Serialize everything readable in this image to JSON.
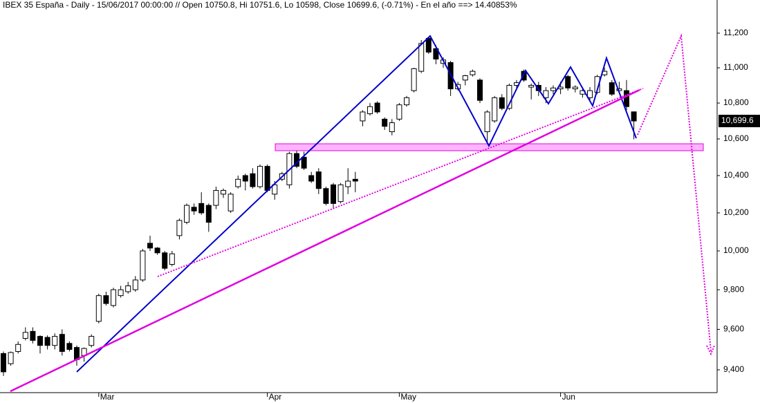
{
  "chart_data": {
    "type": "candlestick",
    "title": "IBEX 35 España - Daily - 15/06/2017 00:00:00 // Open 10750.8, Hi 10751.6, Lo 10598, Close 10699.6, (-0.71%) - En el año ==> 14.40853%",
    "categories": [
      null,
      null,
      null,
      null,
      null,
      null,
      null,
      null,
      null,
      null,
      null,
      null,
      null,
      "Mar",
      null,
      null,
      null,
      null,
      null,
      null,
      null,
      null,
      null,
      null,
      null,
      null,
      null,
      null,
      null,
      null,
      null,
      null,
      null,
      null,
      null,
      null,
      "Apr",
      null,
      null,
      null,
      null,
      null,
      null,
      null,
      null,
      null,
      null,
      null,
      null,
      null,
      null,
      null,
      null,
      null,
      "May",
      null,
      null,
      null,
      null,
      null,
      null,
      null,
      null,
      null,
      null,
      null,
      null,
      null,
      null,
      null,
      null,
      null,
      null,
      null,
      null,
      null,
      "Jun",
      null,
      null,
      null,
      null,
      null,
      null,
      null,
      null,
      null,
      null
    ],
    "open": [
      9480,
      9430,
      9490,
      9555,
      9590,
      9565,
      9560,
      9520,
      9575,
      9530,
      9510,
      9470,
      9520,
      9640,
      9770,
      9720,
      9770,
      9790,
      9800,
      9850,
      10040,
      10015,
      9990,
      9930,
      10080,
      10150,
      10230,
      10250,
      10240,
      10240,
      10300,
      10210,
      10340,
      10400,
      10410,
      10340,
      10450,
      10300,
      10380,
      10350,
      10520,
      10500,
      10400,
      10420,
      10330,
      10350,
      10260,
      10340,
      10380,
      10700,
      10740,
      10800,
      10710,
      10640,
      10710,
      10790,
      10870,
      10980,
      11170,
      11110,
      11025,
      11030,
      10880,
      10930,
      10960,
      10930,
      10640,
      10700,
      10830,
      10770,
      10900,
      10980,
      10890,
      10900,
      10830,
      10870,
      10880,
      10950,
      10880,
      10850,
      10830,
      10860,
      10960,
      10915,
      10870,
      10870,
      10750.8
    ],
    "high": [
      9490,
      9490,
      9540,
      9610,
      9610,
      9570,
      9570,
      9580,
      9600,
      9540,
      9520,
      9510,
      9575,
      9780,
      9790,
      9810,
      9820,
      9840,
      9870,
      10010,
      10080,
      10020,
      10000,
      10000,
      10170,
      10250,
      10250,
      10310,
      10250,
      10340,
      10330,
      10310,
      10400,
      10410,
      10440,
      10460,
      10460,
      10370,
      10420,
      10530,
      10540,
      10530,
      10420,
      10440,
      10340,
      10360,
      10360,
      10440,
      10420,
      10760,
      10800,
      10810,
      10720,
      10710,
      10800,
      10840,
      11000,
      11160,
      11180,
      11130,
      11060,
      11040,
      10920,
      10960,
      10990,
      10940,
      10760,
      10840,
      10850,
      10910,
      10930,
      10990,
      10910,
      10920,
      10890,
      10900,
      10920,
      10960,
      10900,
      10880,
      10890,
      10960,
      11000,
      10930,
      10920,
      10930,
      10751.6
    ],
    "low": [
      9370,
      9420,
      9480,
      9545,
      9530,
      9480,
      9500,
      9500,
      9470,
      9490,
      9420,
      9440,
      9510,
      9630,
      9720,
      9710,
      9760,
      9780,
      9790,
      9840,
      10000,
      9980,
      9900,
      9920,
      10060,
      10140,
      10190,
      10190,
      10100,
      10220,
      10280,
      10200,
      10330,
      10320,
      10330,
      10330,
      10310,
      10270,
      10370,
      10330,
      10440,
      10430,
      10360,
      10300,
      10240,
      10220,
      10250,
      10300,
      10310,
      10670,
      10730,
      10740,
      10650,
      10620,
      10700,
      10780,
      10860,
      10970,
      11080,
      11020,
      11000,
      10840,
      10870,
      10900,
      10950,
      10800,
      10560,
      10690,
      10760,
      10760,
      10880,
      10920,
      10820,
      10840,
      10800,
      10850,
      10850,
      10870,
      10860,
      10830,
      10810,
      10850,
      10950,
      10840,
      10860,
      10760,
      10598
    ],
    "close": [
      9390,
      9485,
      9525,
      9585,
      9545,
      9520,
      9520,
      9565,
      9490,
      9500,
      9450,
      9505,
      9565,
      9770,
      9730,
      9800,
      9800,
      9820,
      9850,
      10000,
      10015,
      9990,
      9910,
      9985,
      10160,
      10240,
      10210,
      10200,
      10150,
      10320,
      10320,
      10300,
      10380,
      10370,
      10340,
      10450,
      10320,
      10350,
      10410,
      10520,
      10450,
      10440,
      10370,
      10330,
      10250,
      10250,
      10350,
      10370,
      10370,
      10750,
      10780,
      10750,
      10670,
      10690,
      10790,
      10830,
      10995,
      11140,
      11090,
      11050,
      11045,
      10880,
      10905,
      10955,
      10980,
      10815,
      10750,
      10830,
      10770,
      10900,
      10915,
      10930,
      10900,
      10870,
      10870,
      10885,
      10890,
      10885,
      10890,
      10870,
      10870,
      10950,
      10980,
      10850,
      10880,
      10780,
      10699.6
    ],
    "last_price_label": "10,699.6",
    "log_scale": true,
    "ylim": [
      9299,
      11395
    ],
    "yticks": [
      {
        "value": 9400,
        "label": "9,400"
      },
      {
        "value": 9600,
        "label": "9,600"
      },
      {
        "value": 9800,
        "label": "9,800"
      },
      {
        "value": 10000,
        "label": "10,000"
      },
      {
        "value": 10200,
        "label": "10,200"
      },
      {
        "value": 10400,
        "label": "10,400"
      },
      {
        "value": 10600,
        "label": "10,600"
      },
      {
        "value": 10800,
        "label": "10,800"
      },
      {
        "value": 11000,
        "label": "11,000"
      },
      {
        "value": 11200,
        "label": "11,200"
      }
    ],
    "up_color": "#ffffff",
    "down_color": "#000000"
  }
}
